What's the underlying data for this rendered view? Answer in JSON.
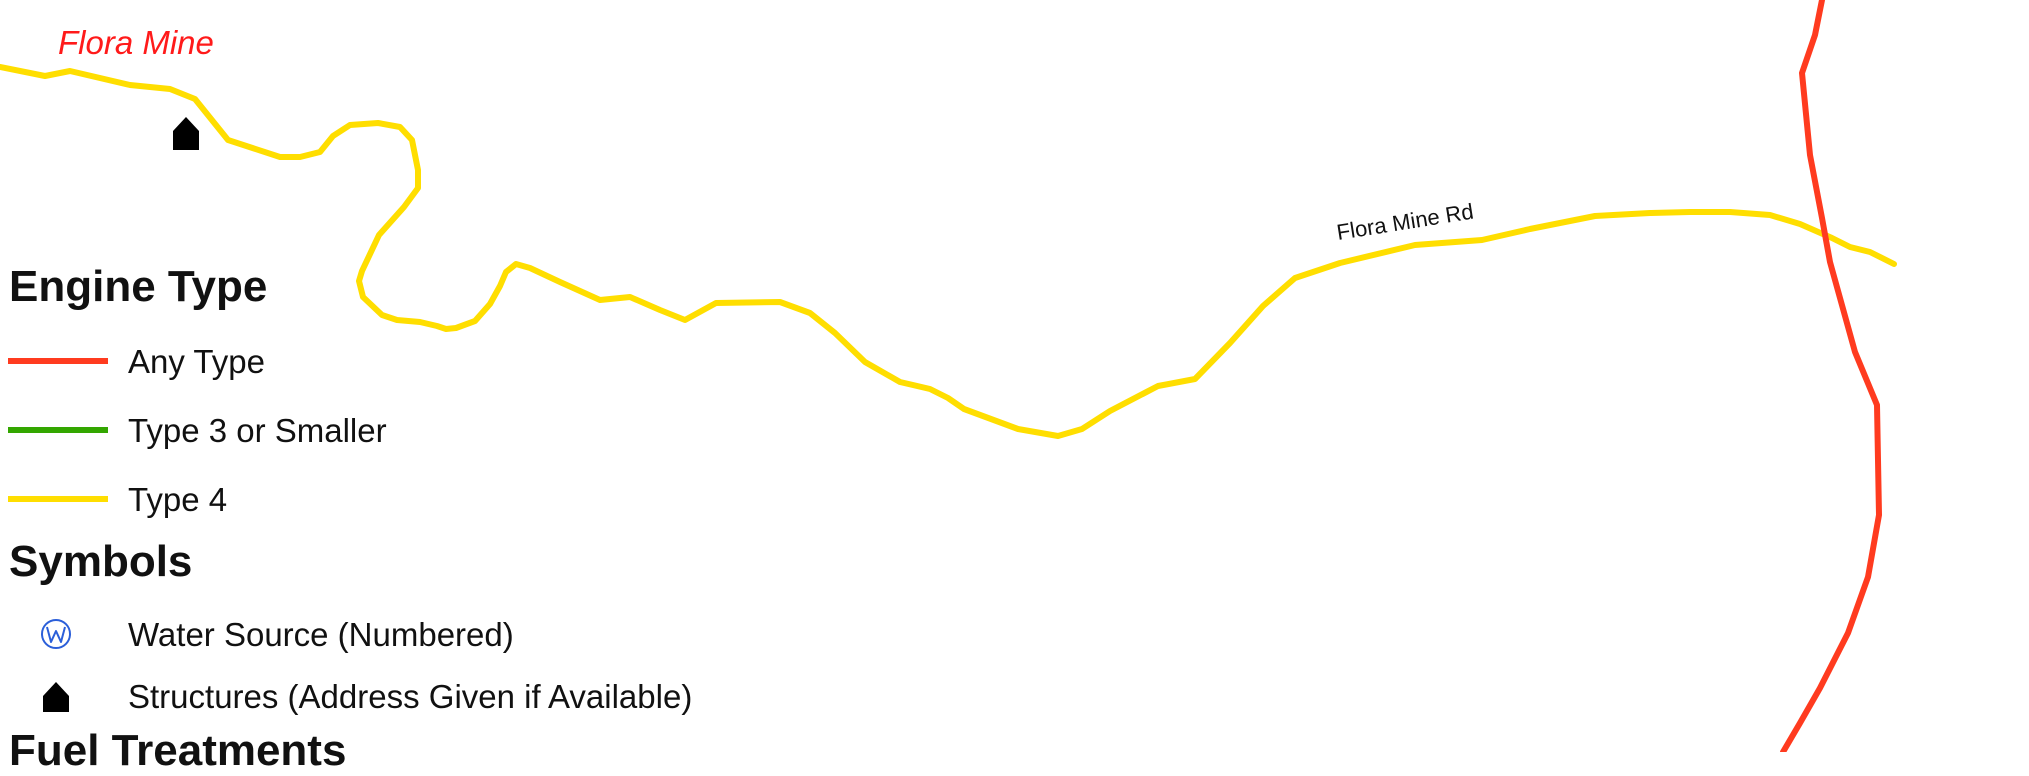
{
  "map": {
    "place_label": "Flora Mine",
    "road_label": "Flora Mine Rd"
  },
  "legend": {
    "engine_heading": "Engine Type",
    "engine_items": [
      {
        "label": "Any Type",
        "color": "#ff3b1f"
      },
      {
        "label": "Type 3 or Smaller",
        "color": "#33a600"
      },
      {
        "label": "Type 4",
        "color": "#ffde00"
      }
    ],
    "symbols_heading": "Symbols",
    "symbol_items": [
      {
        "label": "Water Source (Numbered)",
        "icon": "water-source-icon",
        "color": "#2b5fd9",
        "glyph": "Ⓦ"
      },
      {
        "label": "Structures (Address Given if Available)",
        "icon": "house-icon",
        "color": "#000000"
      }
    ],
    "fuel_heading": "Fuel Treatments"
  },
  "colors": {
    "any_type_road": "#ff3b1f",
    "type4_road": "#ffde00",
    "place_label": "#ff1a1a",
    "background": "#ffffff"
  }
}
